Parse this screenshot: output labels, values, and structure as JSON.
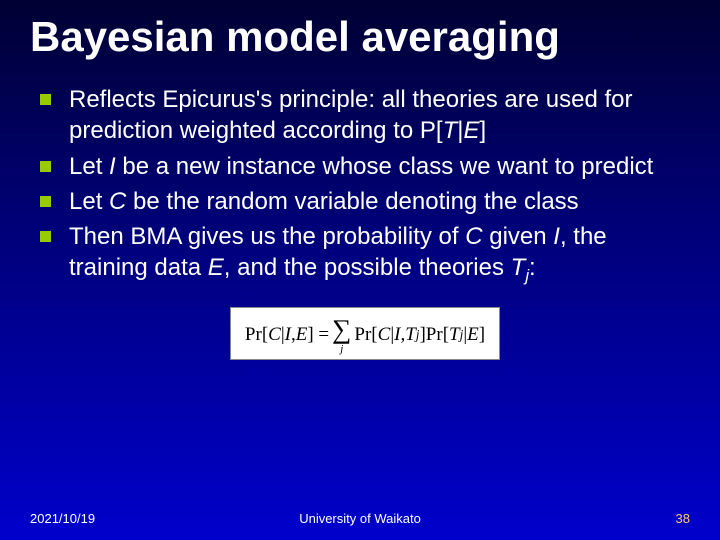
{
  "slide": {
    "title": "Bayesian model averaging",
    "bullets": [
      {
        "pre": "Reflects Epicurus's principle: all theories are used for prediction weighted according to P[",
        "i1": "T",
        "mid1": "|",
        "i2": "E",
        "post": "]"
      },
      {
        "pre": "Let ",
        "i1": "I",
        "mid1": " be a new instance whose class we want to predict",
        "i2": "",
        "post": ""
      },
      {
        "pre": "Let ",
        "i1": "C",
        "mid1": " be the random variable denoting the class",
        "i2": "",
        "post": ""
      },
      {
        "pre": "Then BMA gives us the probability of ",
        "i1": "C",
        "mid1": " given ",
        "i2": "I",
        "post": ", the training data ",
        "i3": "E",
        "mid2": ", and the possible theories ",
        "i4": "T",
        "sub": "j",
        "tail": ":"
      }
    ],
    "formula": {
      "lhs_pre": "Pr[",
      "lhs_C": "C",
      "lhs_bar": " | ",
      "lhs_I": "I",
      "lhs_comma": ", ",
      "lhs_E": "E",
      "lhs_post": "] = ",
      "sum_sub": "j",
      "rhs1_pre": " Pr[",
      "rhs1_C": "C",
      "rhs1_bar": " | ",
      "rhs1_I": "I",
      "rhs1_comma": ",",
      "rhs1_T": "T",
      "rhs1_j": "j",
      "rhs1_post": "]Pr[",
      "rhs2_T": "T",
      "rhs2_j": "j",
      "rhs2_bar": " | ",
      "rhs2_E": "E",
      "rhs2_post": "]"
    },
    "footer": {
      "date": "2021/10/19",
      "org": "University of Waikato",
      "page": "38"
    }
  },
  "colors": {
    "bullet": "#99cc00",
    "page_number": "#ffcc66"
  }
}
